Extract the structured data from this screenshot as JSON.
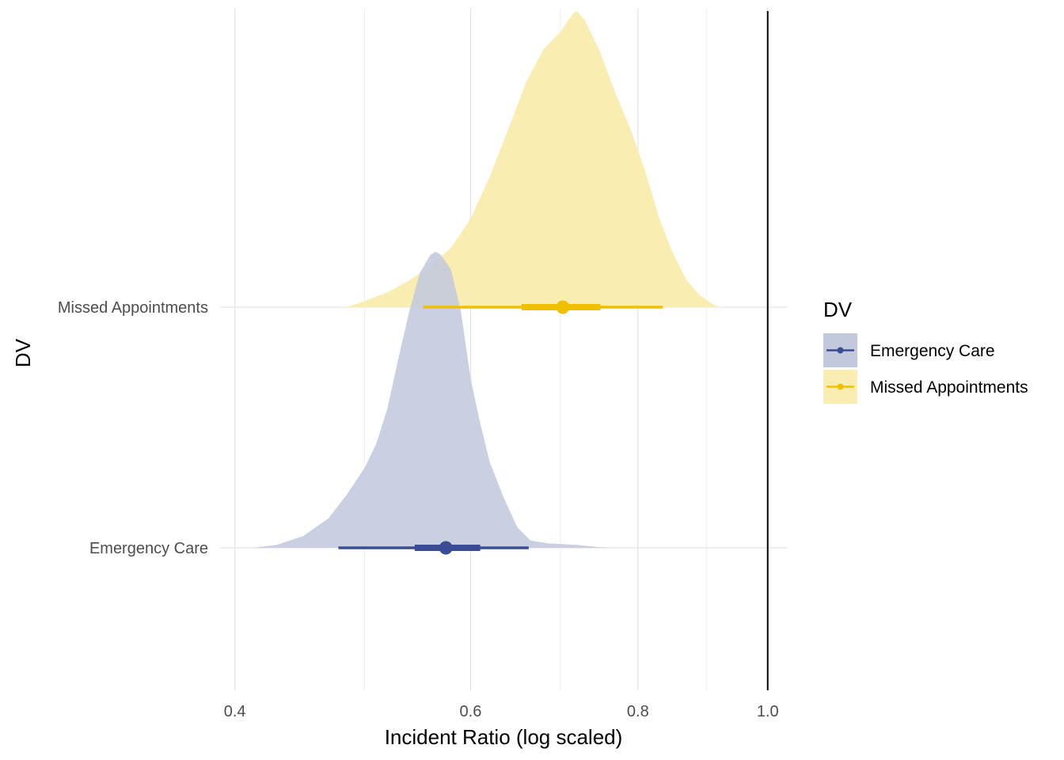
{
  "chart_data": {
    "type": "area",
    "subtype": "halfeye-density",
    "title": "",
    "xlabel": "Incident Ratio (log scaled)",
    "ylabel": "DV",
    "x_scale": "log",
    "xlim": [
      0.39,
      1.035
    ],
    "x_ticks": [
      0.4,
      0.6,
      0.8,
      1.0
    ],
    "x_tick_labels": [
      "0.4",
      "0.6",
      "0.8",
      "1.0"
    ],
    "x_minor_ticks": [
      0.5,
      0.7,
      0.9
    ],
    "reference_line_x": 1.0,
    "categories": [
      "Missed Appointments",
      "Emergency Care"
    ],
    "grid": true,
    "legend": {
      "title": "DV",
      "position": "right",
      "entries": [
        "Emergency Care",
        "Missed Appointments"
      ]
    },
    "series": [
      {
        "name": "Emergency Care",
        "category": "Emergency Care",
        "color": "#3a4d94",
        "fill": "#c3c9dd",
        "point": 0.575,
        "interval_66": [
          0.545,
          0.61
        ],
        "interval_95": [
          0.478,
          0.663
        ],
        "density": [
          [
            0.413,
            0.0
          ],
          [
            0.43,
            0.01
          ],
          [
            0.45,
            0.04
          ],
          [
            0.47,
            0.1
          ],
          [
            0.485,
            0.18
          ],
          [
            0.5,
            0.27
          ],
          [
            0.51,
            0.35
          ],
          [
            0.52,
            0.47
          ],
          [
            0.53,
            0.64
          ],
          [
            0.54,
            0.8
          ],
          [
            0.55,
            0.93
          ],
          [
            0.56,
            0.99
          ],
          [
            0.565,
            1.0
          ],
          [
            0.57,
            0.99
          ],
          [
            0.58,
            0.94
          ],
          [
            0.59,
            0.8
          ],
          [
            0.6,
            0.57
          ],
          [
            0.61,
            0.42
          ],
          [
            0.62,
            0.29
          ],
          [
            0.635,
            0.17
          ],
          [
            0.65,
            0.07
          ],
          [
            0.665,
            0.025
          ],
          [
            0.685,
            0.015
          ],
          [
            0.72,
            0.01
          ],
          [
            0.745,
            0.003
          ],
          [
            0.765,
            0.0
          ]
        ]
      },
      {
        "name": "Missed Appointments",
        "category": "Missed Appointments",
        "color": "#efc000",
        "fill": "#f9edb1",
        "point": 0.703,
        "interval_66": [
          0.655,
          0.75
        ],
        "interval_95": [
          0.553,
          0.835
        ],
        "density": [
          [
            0.485,
            0.0
          ],
          [
            0.5,
            0.02
          ],
          [
            0.52,
            0.05
          ],
          [
            0.54,
            0.09
          ],
          [
            0.56,
            0.14
          ],
          [
            0.58,
            0.2
          ],
          [
            0.6,
            0.3
          ],
          [
            0.62,
            0.44
          ],
          [
            0.64,
            0.6
          ],
          [
            0.66,
            0.76
          ],
          [
            0.68,
            0.87
          ],
          [
            0.7,
            0.93
          ],
          [
            0.715,
            0.99
          ],
          [
            0.72,
            1.0
          ],
          [
            0.73,
            0.97
          ],
          [
            0.75,
            0.86
          ],
          [
            0.77,
            0.72
          ],
          [
            0.79,
            0.6
          ],
          [
            0.81,
            0.46
          ],
          [
            0.83,
            0.3
          ],
          [
            0.85,
            0.18
          ],
          [
            0.87,
            0.09
          ],
          [
            0.89,
            0.04
          ],
          [
            0.91,
            0.01
          ],
          [
            0.92,
            0.0
          ]
        ]
      }
    ]
  }
}
